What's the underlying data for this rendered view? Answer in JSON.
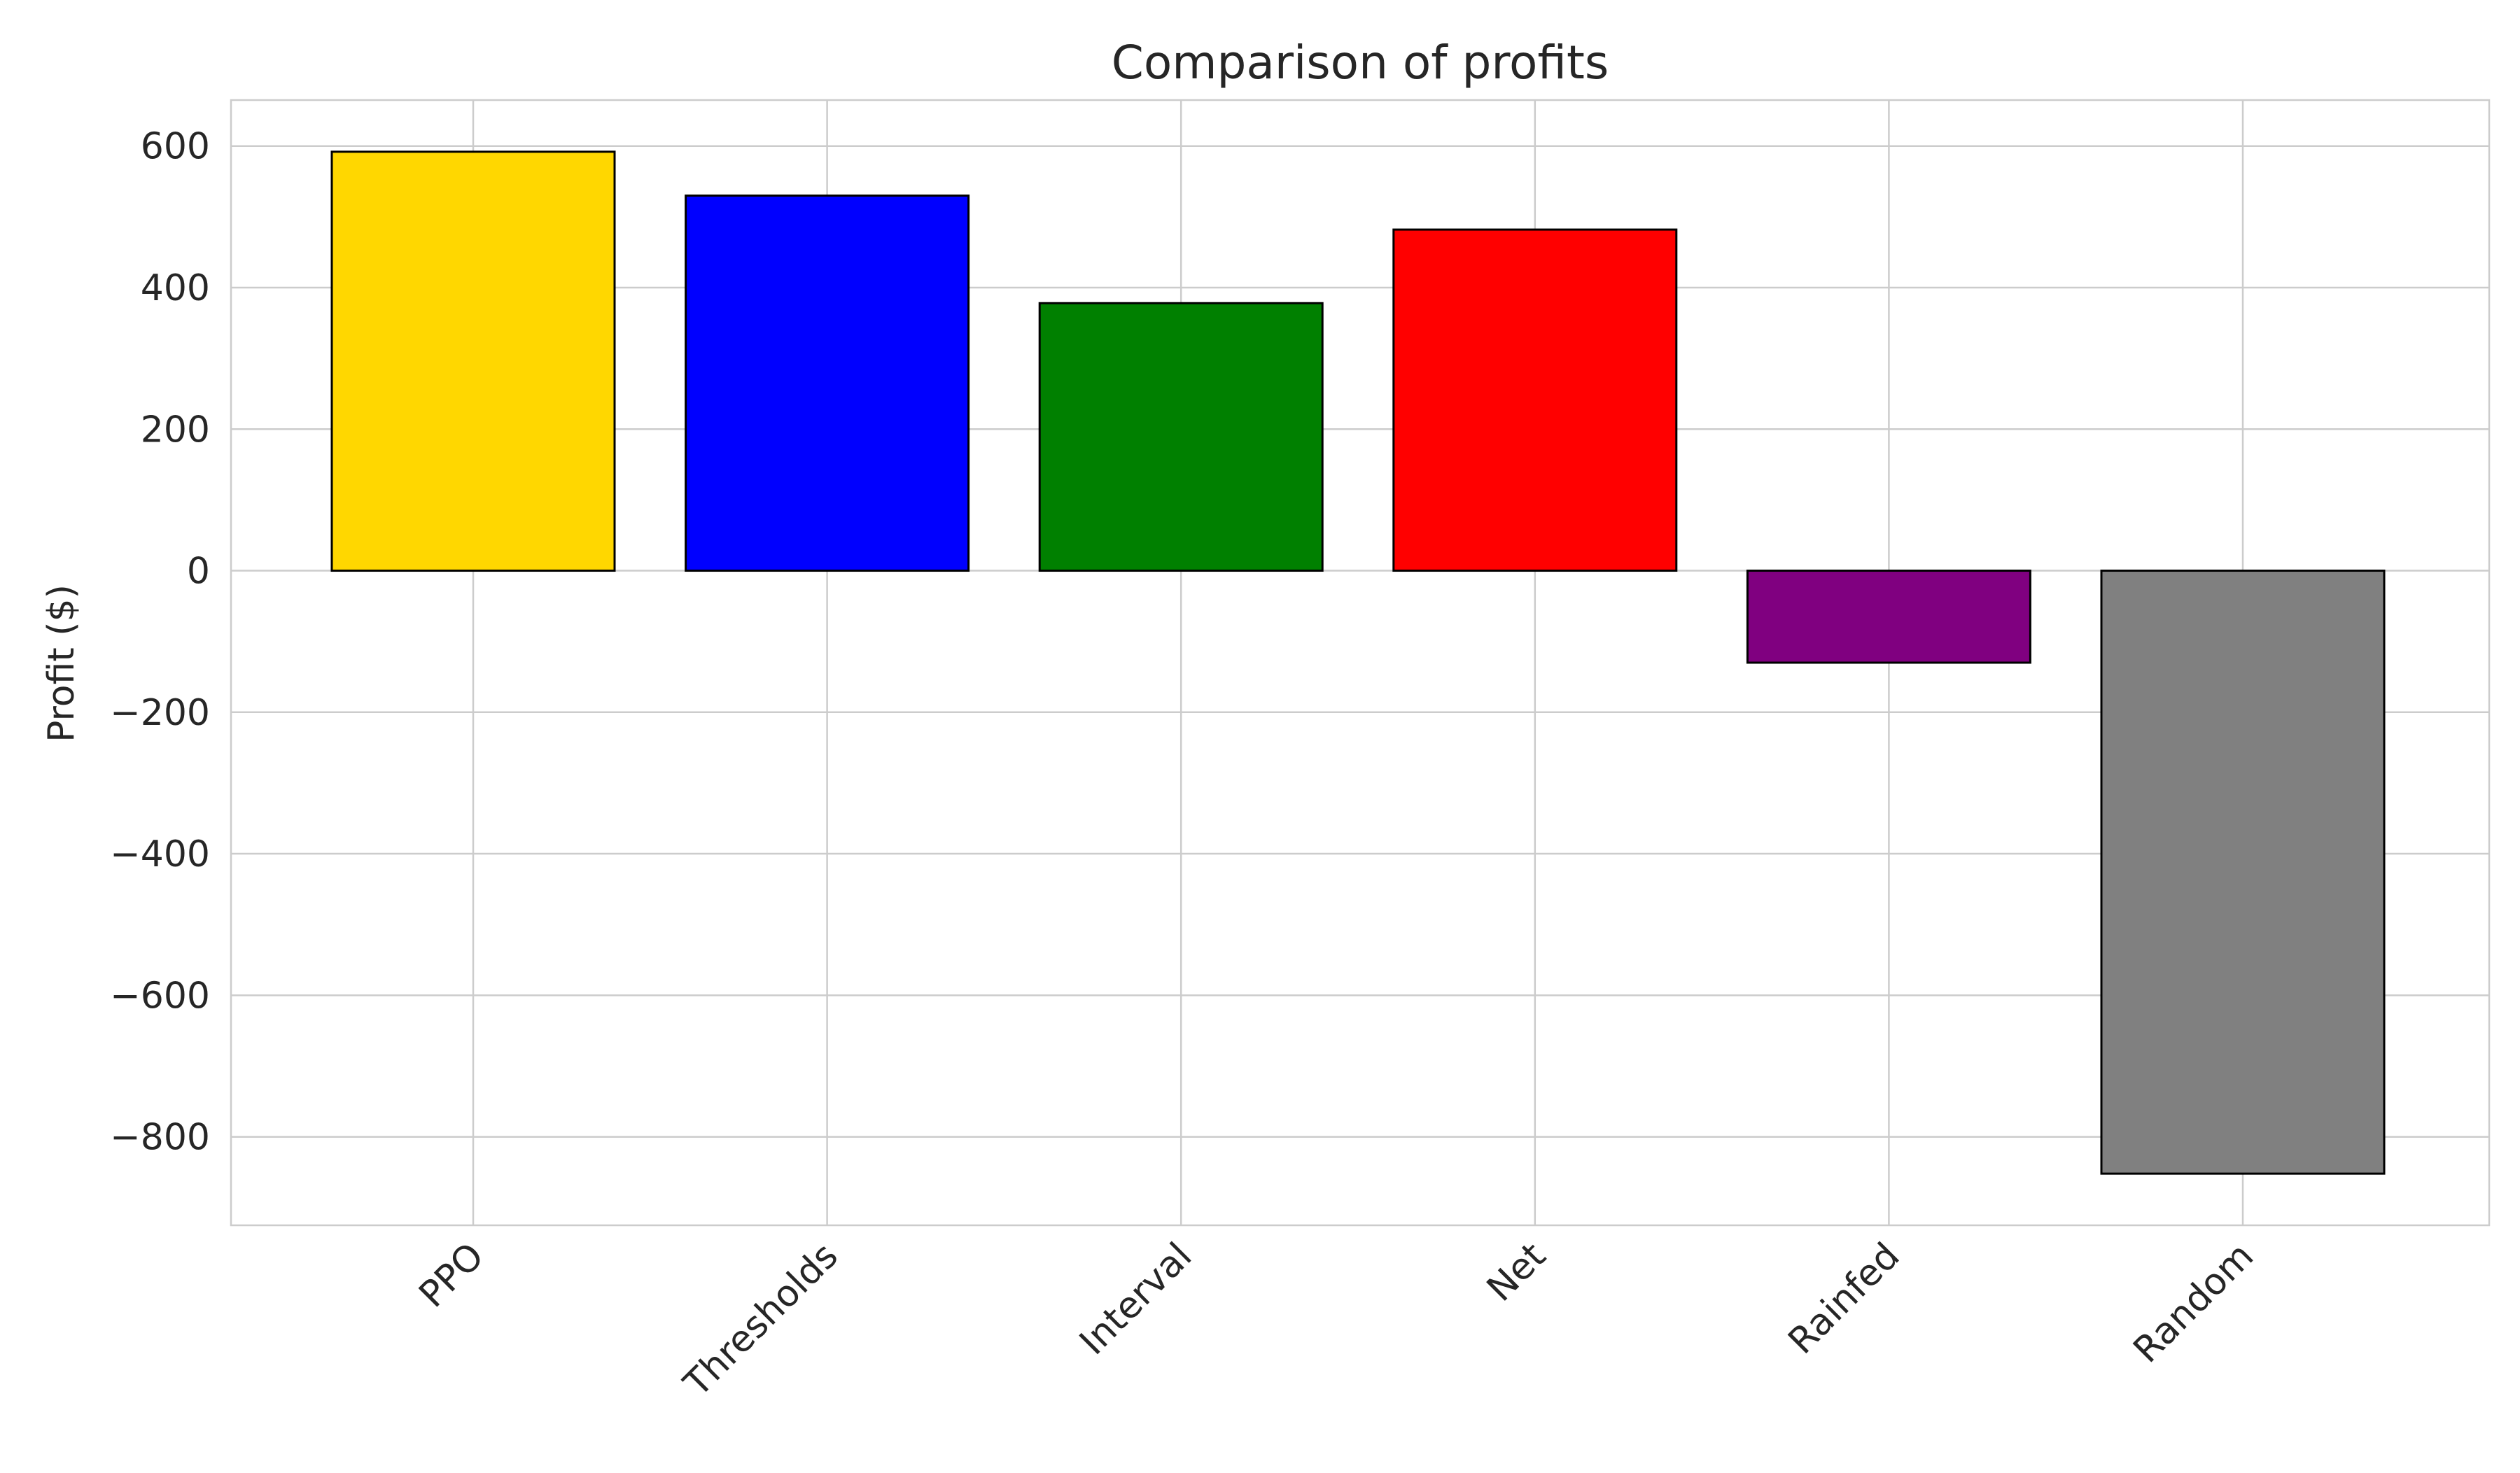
{
  "chart_data": {
    "type": "bar",
    "title": "Comparison of profits",
    "xlabel": "",
    "ylabel": "Profit ($)",
    "categories": [
      "PPO",
      "Thresholds",
      "Interval",
      "Net",
      "Rainfed",
      "Random"
    ],
    "values": [
      592,
      530,
      378,
      482,
      -130,
      -852
    ],
    "colors": [
      "#FFD700",
      "#0000FF",
      "#008000",
      "#FF0000",
      "#800080",
      "#808080"
    ],
    "ylim": [
      -925,
      665
    ],
    "yticks": [
      600,
      400,
      200,
      0,
      -200,
      -400,
      -600,
      -800
    ],
    "ytick_labels": [
      "600",
      "400",
      "200",
      "0",
      "−200",
      "−400",
      "−600",
      "−800"
    ],
    "grid": true,
    "bar_edge_color": "#000000",
    "grid_color": "#cccccc"
  }
}
